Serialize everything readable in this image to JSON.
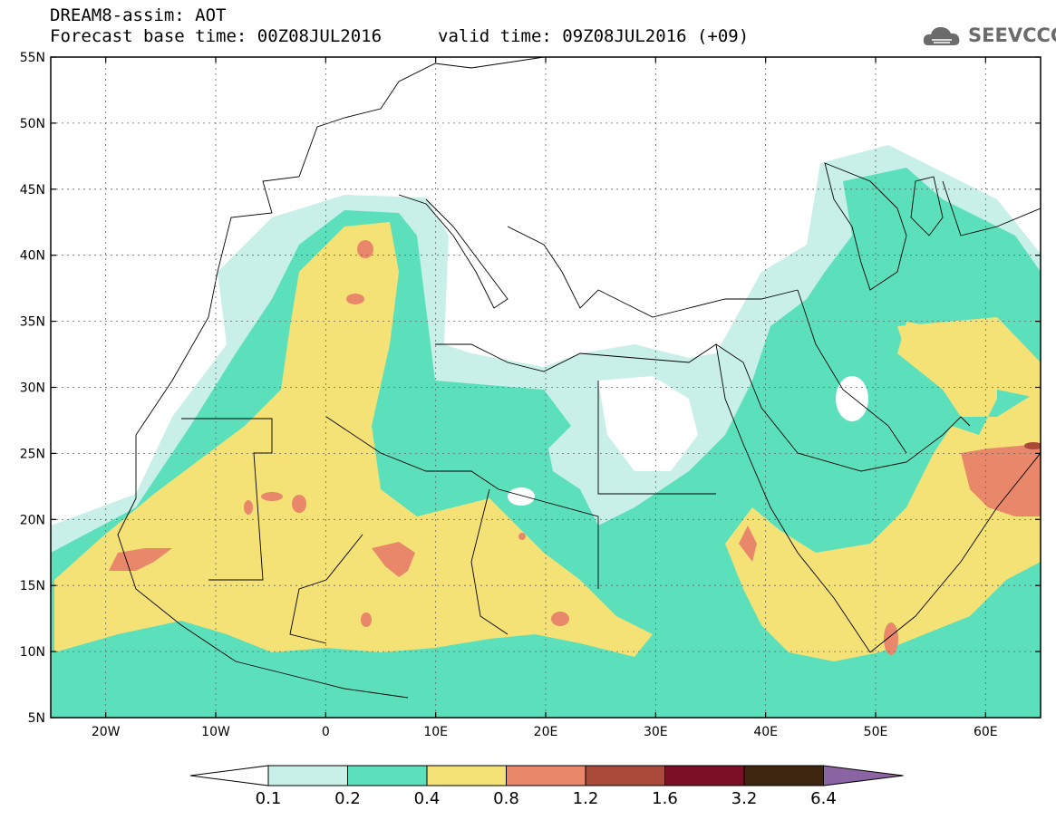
{
  "header": {
    "title": "DREAM8-assim: AOT",
    "base_time": "Forecast base time: 00Z08JUL2016",
    "valid_time": "valid time: 09Z08JUL2016 (+09)",
    "logo_text": "SEEVCCC"
  },
  "map": {
    "lat_labels": [
      "55N",
      "50N",
      "45N",
      "40N",
      "35N",
      "30N",
      "25N",
      "20N",
      "15N",
      "10N",
      "5N"
    ],
    "lon_labels": [
      "20W",
      "10W",
      "0",
      "10E",
      "20E",
      "30E",
      "40E",
      "50E",
      "60E"
    ],
    "lat_range": [
      5,
      55
    ],
    "lon_range": [
      -25,
      65
    ],
    "grid": "dotted"
  },
  "legend": {
    "labels": [
      "0.1",
      "0.2",
      "0.4",
      "0.8",
      "1.2",
      "1.6",
      "3.2",
      "6.4"
    ],
    "colors": [
      "#ffffff",
      "#c8f0e8",
      "#5ce0bb",
      "#f5e276",
      "#e8876a",
      "#a94a3a",
      "#7b0f26",
      "#3d2510",
      "#8b64a4"
    ]
  },
  "colors": {
    "band1": "#c8f0e8",
    "band2": "#5ce0bb",
    "band3": "#f5e276",
    "band4": "#e8876a",
    "band5": "#a94a3a",
    "logo": "#6b6b6b"
  }
}
